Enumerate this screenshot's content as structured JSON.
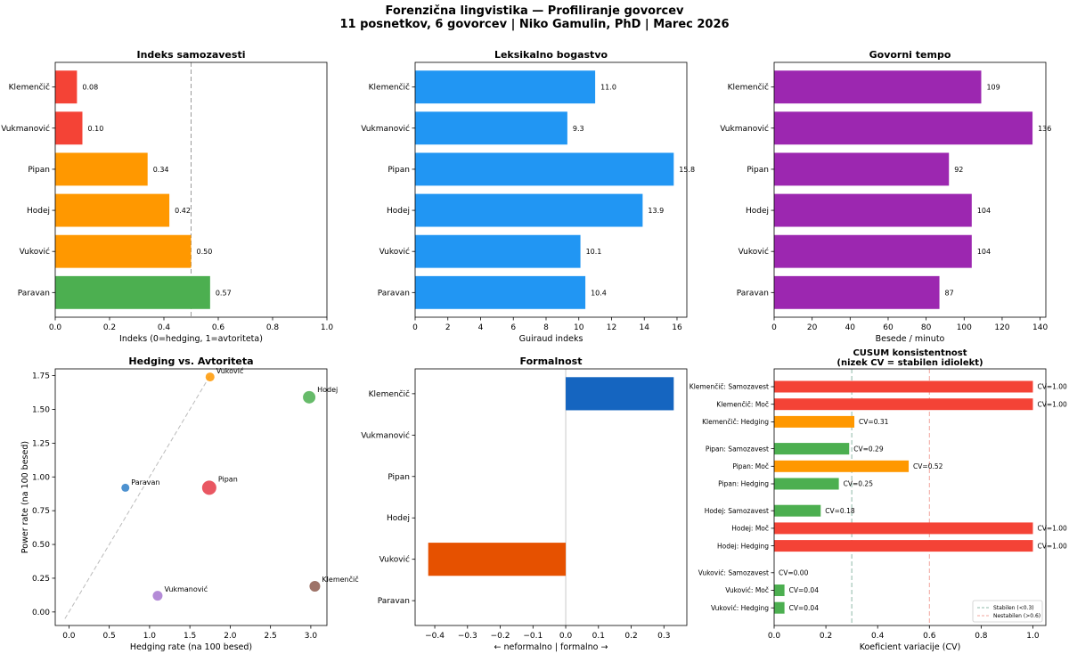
{
  "figure": {
    "title_line1": "Forenzična lingvistika — Profiliranje govorcev",
    "title_line2": "11 posnetkov, 6 govorcev | Niko Gamulin, PhD | Marec 2026"
  },
  "chart_data": [
    {
      "type": "bar",
      "orientation": "horizontal",
      "title": "Indeks samozavesti",
      "xlabel": "Indeks (0=hedging, 1=avtoriteta)",
      "categories": [
        "Klemenčič",
        "Vukmanović",
        "Pipan",
        "Hodej",
        "Vuković",
        "Paravan"
      ],
      "values": [
        0.08,
        0.1,
        0.34,
        0.42,
        0.5,
        0.57
      ],
      "value_labels": [
        "0.08",
        "0.10",
        "0.34",
        "0.42",
        "0.50",
        "0.57"
      ],
      "colors": [
        "#f44336",
        "#f44336",
        "#ff9800",
        "#ff9800",
        "#ff9800",
        "#4caf50"
      ],
      "xlim": [
        0,
        1.0
      ],
      "xticks": [
        "0.0",
        "0.2",
        "0.4",
        "0.6",
        "0.8",
        "1.0"
      ],
      "reference_line_x": 0.5
    },
    {
      "type": "bar",
      "orientation": "horizontal",
      "title": "Leksikalno bogastvo",
      "xlabel": "Guiraud indeks",
      "categories": [
        "Klemenčič",
        "Vukmanović",
        "Pipan",
        "Hodej",
        "Vuković",
        "Paravan"
      ],
      "values": [
        11.0,
        9.3,
        15.8,
        13.9,
        10.1,
        10.4
      ],
      "value_labels": [
        "11.0",
        "9.3",
        "15.8",
        "13.9",
        "10.1",
        "10.4"
      ],
      "colors": [
        "#2196f3",
        "#2196f3",
        "#2196f3",
        "#2196f3",
        "#2196f3",
        "#2196f3"
      ],
      "xlim": [
        0,
        16.6
      ],
      "xticks": [
        "0",
        "2",
        "4",
        "6",
        "8",
        "10",
        "12",
        "14",
        "16"
      ]
    },
    {
      "type": "bar",
      "orientation": "horizontal",
      "title": "Govorni tempo",
      "xlabel": "Besede / minuto",
      "categories": [
        "Klemenčič",
        "Vukmanović",
        "Pipan",
        "Hodej",
        "Vuković",
        "Paravan"
      ],
      "values": [
        109,
        136,
        92,
        104,
        104,
        87
      ],
      "value_labels": [
        "109",
        "136",
        "92",
        "104",
        "104",
        "87"
      ],
      "colors": [
        "#9c27b0",
        "#9c27b0",
        "#9c27b0",
        "#9c27b0",
        "#9c27b0",
        "#9c27b0"
      ],
      "xlim": [
        0,
        143
      ],
      "xticks": [
        "0",
        "20",
        "40",
        "60",
        "80",
        "100",
        "120",
        "140"
      ]
    },
    {
      "type": "scatter",
      "title": "Hedging vs. Avtoriteta",
      "xlabel": "Hedging rate (na 100 besed)",
      "ylabel": "Power rate (na 100 besed)",
      "xlim": [
        -0.17,
        3.2
      ],
      "ylim": [
        -0.1,
        1.8
      ],
      "xticks": [
        "0.0",
        "0.5",
        "1.0",
        "1.5",
        "2.0",
        "2.5",
        "3.0"
      ],
      "yticks": [
        "0.00",
        "0.25",
        "0.50",
        "0.75",
        "1.00",
        "1.25",
        "1.50",
        "1.75"
      ],
      "diagonal_line": [
        [
          -0.05,
          -0.05
        ],
        [
          1.75,
          1.75
        ]
      ],
      "points": [
        {
          "label": "Vuković",
          "x": 1.75,
          "y": 1.74,
          "size": 5,
          "color": "#ff9800"
        },
        {
          "label": "Hodej",
          "x": 2.98,
          "y": 1.59,
          "size": 7,
          "color": "#4caf50"
        },
        {
          "label": "Paravan",
          "x": 0.7,
          "y": 0.92,
          "size": 4.5,
          "color": "#2f7fc8"
        },
        {
          "label": "Pipan",
          "x": 1.74,
          "y": 0.92,
          "size": 8,
          "color": "#e53946"
        },
        {
          "label": "Klemenčič",
          "x": 3.05,
          "y": 0.19,
          "size": 6,
          "color": "#8d5a4d"
        },
        {
          "label": "Vukmanović",
          "x": 1.1,
          "y": 0.12,
          "size": 5.5,
          "color": "#a777d0"
        }
      ]
    },
    {
      "type": "bar",
      "orientation": "horizontal",
      "title": "Formalnost",
      "xlabel": "← neformalno | formalno →",
      "categories": [
        "Klemenčič",
        "Vukmanović",
        "Pipan",
        "Hodej",
        "Vuković",
        "Paravan"
      ],
      "values": [
        0.33,
        0.0,
        0.0,
        0.0,
        -0.42,
        0.0
      ],
      "colors": [
        "#1565c0",
        "#1565c0",
        "#1565c0",
        "#1565c0",
        "#e65100",
        "#1565c0"
      ],
      "xlim": [
        -0.46,
        0.37
      ],
      "xticks": [
        "−0.4",
        "−0.3",
        "−0.2",
        "−0.1",
        "0.0",
        "0.1",
        "0.2",
        "0.3"
      ]
    },
    {
      "type": "bar",
      "orientation": "horizontal",
      "title_line1": "CUSUM konsistentnost",
      "title_line2": "(nizek CV = stabilen idiolekt)",
      "xlabel": "Koeficient variacije (CV)",
      "xlim": [
        0,
        1.05
      ],
      "xticks": [
        "0.0",
        "0.2",
        "0.4",
        "0.6",
        "0.8",
        "1.0"
      ],
      "stable_threshold": 0.3,
      "unstable_threshold": 0.6,
      "legend": {
        "position": "bottom-right",
        "stable": "Stabilen (<0.3)",
        "unstable": "Nestabilen (>0.6)"
      },
      "bars": [
        {
          "label": "Klemenčič: Samozavest",
          "value": 1.0,
          "text": "CV=1.00",
          "color": "#f44336"
        },
        {
          "label": "Klemenčič: Moč",
          "value": 1.0,
          "text": "CV=1.00",
          "color": "#f44336"
        },
        {
          "label": "Klemenčič: Hedging",
          "value": 0.31,
          "text": "CV=0.31",
          "color": "#ff9800"
        },
        {
          "label": "Pipan: Samozavest",
          "value": 0.29,
          "text": "CV=0.29",
          "color": "#4caf50"
        },
        {
          "label": "Pipan: Moč",
          "value": 0.52,
          "text": "CV=0.52",
          "color": "#ff9800"
        },
        {
          "label": "Pipan: Hedging",
          "value": 0.25,
          "text": "CV=0.25",
          "color": "#4caf50"
        },
        {
          "label": "Hodej: Samozavest",
          "value": 0.18,
          "text": "CV=0.18",
          "color": "#4caf50"
        },
        {
          "label": "Hodej: Moč",
          "value": 1.0,
          "text": "CV=1.00",
          "color": "#f44336"
        },
        {
          "label": "Hodej: Hedging",
          "value": 1.0,
          "text": "CV=1.00",
          "color": "#f44336"
        },
        {
          "label": "Vuković: Samozavest",
          "value": 0.0,
          "text": "CV=0.00",
          "color": "#4caf50"
        },
        {
          "label": "Vuković: Moč",
          "value": 0.04,
          "text": "CV=0.04",
          "color": "#4caf50"
        },
        {
          "label": "Vuković: Hedging",
          "value": 0.04,
          "text": "CV=0.04",
          "color": "#4caf50"
        }
      ]
    }
  ]
}
